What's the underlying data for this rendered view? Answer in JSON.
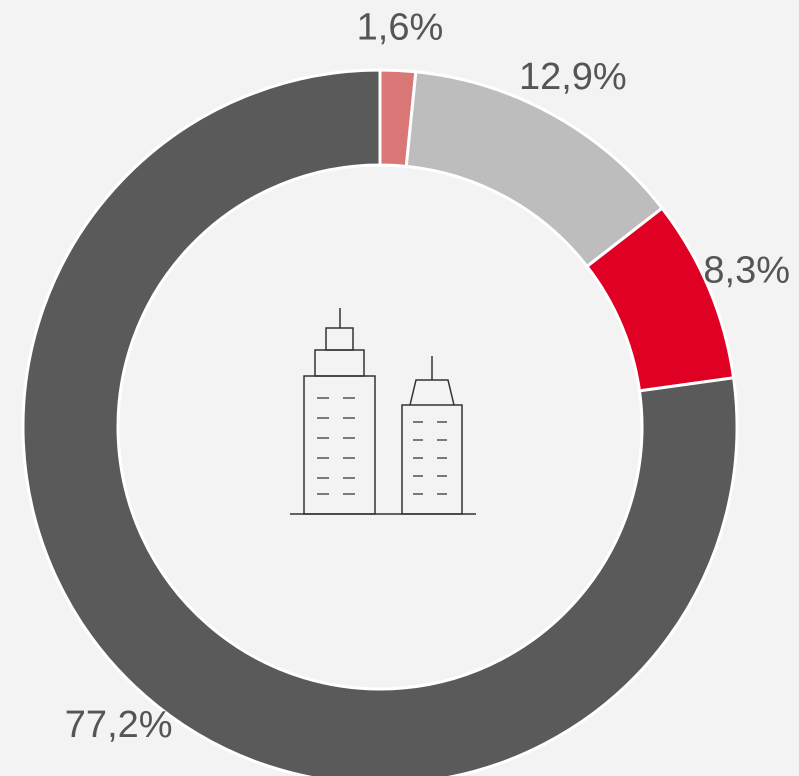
{
  "chart_data": {
    "type": "donut",
    "values": [
      1.6,
      12.9,
      8.3,
      77.2
    ],
    "value_labels": [
      "1,6%",
      "12,9%",
      "8,3%",
      "77,2%"
    ],
    "colors": [
      "#d97777",
      "#bdbdbd",
      "#e00024",
      "#5a5a5a"
    ]
  }
}
